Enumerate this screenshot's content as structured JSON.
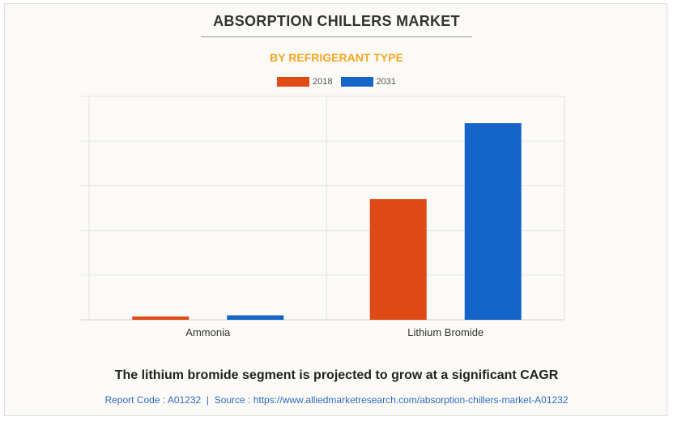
{
  "title": "ABSORPTION CHILLERS MARKET",
  "subtitle": "BY REFRIGERANT TYPE",
  "colors": {
    "accent": "#f5a623",
    "series_2018": "#e04a16",
    "series_2031": "#1565c8"
  },
  "chart_data": {
    "type": "bar",
    "categories": [
      "Ammonia",
      "Lithium Bromide"
    ],
    "series": [
      {
        "name": "2018",
        "values": [
          0.15,
          5.4
        ],
        "color": "#e04a16"
      },
      {
        "name": "2031",
        "values": [
          0.2,
          8.8
        ],
        "color": "#1565c8"
      }
    ],
    "ylim": [
      0,
      10
    ],
    "grid": true,
    "legend": "top-center",
    "xlabel": "",
    "ylabel": ""
  },
  "headline": "The lithium bromide segment is projected to grow at a significant CAGR",
  "footer": {
    "report_code": "Report Code : A01232",
    "separator": "|",
    "source": "Source : https://www.alliedmarketresearch.com/absorption-chillers-market-A01232"
  }
}
